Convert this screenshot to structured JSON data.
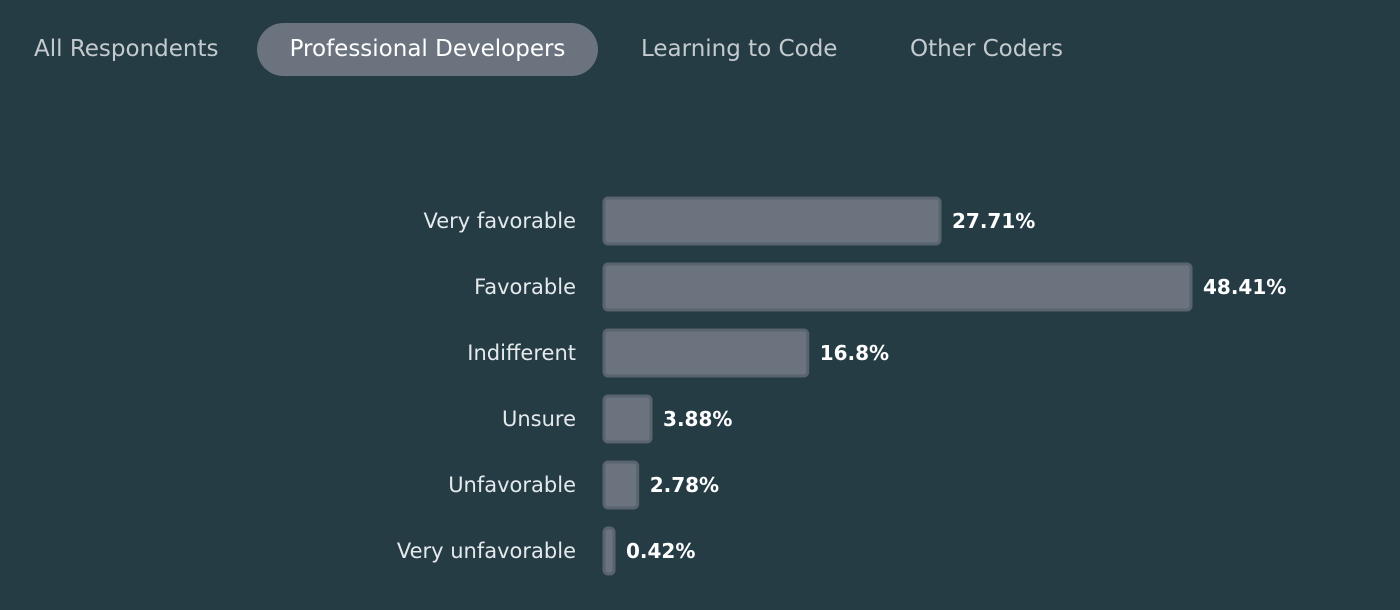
{
  "tabs": [
    {
      "label": "All Respondents",
      "active": false
    },
    {
      "label": "Professional Developers",
      "active": true
    },
    {
      "label": "Learning to Code",
      "active": false
    },
    {
      "label": "Other Coders",
      "active": false
    }
  ],
  "colors": {
    "background": "#263c45",
    "bar": "#6a737e",
    "active_tab": "#6a737e"
  },
  "chart_data": {
    "type": "bar",
    "orientation": "horizontal",
    "categories": [
      "Very favorable",
      "Favorable",
      "Indifferent",
      "Unsure",
      "Unfavorable",
      "Very unfavorable"
    ],
    "values": [
      27.71,
      48.41,
      16.8,
      3.88,
      2.78,
      0.42
    ],
    "value_labels": [
      "27.71%",
      "48.41%",
      "16.8%",
      "3.88%",
      "2.78%",
      "0.42%"
    ],
    "xlim": [
      0,
      48.41
    ],
    "grid": false
  }
}
